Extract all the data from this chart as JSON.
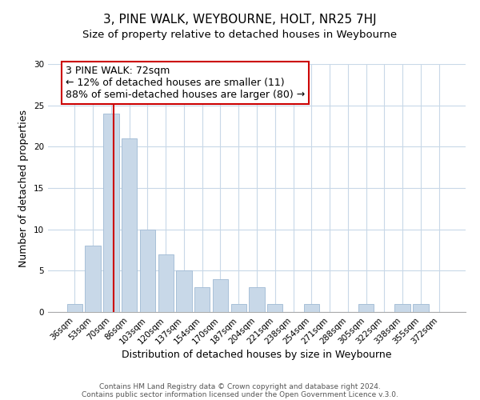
{
  "title": "3, PINE WALK, WEYBOURNE, HOLT, NR25 7HJ",
  "subtitle": "Size of property relative to detached houses in Weybourne",
  "xlabel": "Distribution of detached houses by size in Weybourne",
  "ylabel": "Number of detached properties",
  "bar_labels": [
    "36sqm",
    "53sqm",
    "70sqm",
    "86sqm",
    "103sqm",
    "120sqm",
    "137sqm",
    "154sqm",
    "170sqm",
    "187sqm",
    "204sqm",
    "221sqm",
    "238sqm",
    "254sqm",
    "271sqm",
    "288sqm",
    "305sqm",
    "322sqm",
    "338sqm",
    "355sqm",
    "372sqm"
  ],
  "bar_heights": [
    1,
    8,
    24,
    21,
    10,
    7,
    5,
    3,
    4,
    1,
    3,
    1,
    0,
    1,
    0,
    0,
    1,
    0,
    1,
    1,
    0
  ],
  "bar_color": "#c8d8e8",
  "bar_edge_color": "#a8c0d8",
  "vline_color": "#cc0000",
  "annotation_line1": "3 PINE WALK: 72sqm",
  "annotation_line2": "← 12% of detached houses are smaller (11)",
  "annotation_line3": "88% of semi-detached houses are larger (80) →",
  "ylim": [
    0,
    30
  ],
  "yticks": [
    0,
    5,
    10,
    15,
    20,
    25,
    30
  ],
  "footer_line1": "Contains HM Land Registry data © Crown copyright and database right 2024.",
  "footer_line2": "Contains public sector information licensed under the Open Government Licence v.3.0.",
  "bg_color": "#ffffff",
  "grid_color": "#c8d8e8",
  "title_fontsize": 11,
  "subtitle_fontsize": 9.5,
  "xlabel_fontsize": 9,
  "ylabel_fontsize": 9,
  "tick_fontsize": 7.5,
  "footer_fontsize": 6.5,
  "annotation_fontsize": 9
}
